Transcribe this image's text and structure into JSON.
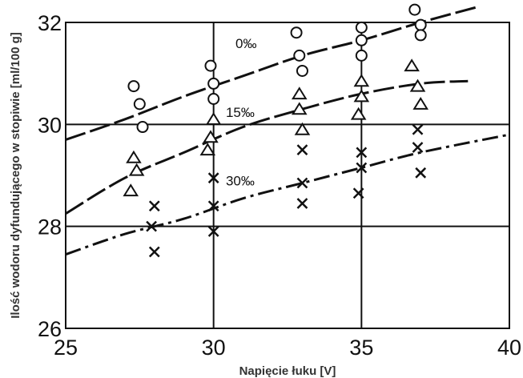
{
  "chart_data": {
    "type": "scatter",
    "title": "",
    "xlabel": "Napięcie łuku [V]",
    "ylabel": "Ilość wodoru dyfundującego w stopiwie [ml/100 g]",
    "xlim": [
      25,
      40
    ],
    "ylim": [
      26,
      32
    ],
    "xticks": [
      "25",
      "30",
      "35",
      "40"
    ],
    "yticks": [
      "26",
      "28",
      "30",
      "32"
    ],
    "grid": true,
    "series": [
      {
        "name": "0‰",
        "marker": "circle",
        "line_style": "dashed",
        "points": [
          [
            27.3,
            30.75
          ],
          [
            27.5,
            30.4
          ],
          [
            27.6,
            29.95
          ],
          [
            29.9,
            31.15
          ],
          [
            30.0,
            30.8
          ],
          [
            30.0,
            30.5
          ],
          [
            32.8,
            31.8
          ],
          [
            32.9,
            31.35
          ],
          [
            33.0,
            31.05
          ],
          [
            35.0,
            31.9
          ],
          [
            35.0,
            31.65
          ],
          [
            35.0,
            31.35
          ],
          [
            36.8,
            32.25
          ],
          [
            37.0,
            31.95
          ],
          [
            37.0,
            31.75
          ]
        ],
        "trend": [
          [
            25,
            29.7
          ],
          [
            27,
            30.1
          ],
          [
            29,
            30.55
          ],
          [
            31,
            30.95
          ],
          [
            33,
            31.35
          ],
          [
            35,
            31.65
          ],
          [
            37,
            32.0
          ],
          [
            38.9,
            32.3
          ]
        ]
      },
      {
        "name": "15‰",
        "marker": "triangle",
        "line_style": "dashed",
        "points": [
          [
            27.3,
            29.35
          ],
          [
            27.4,
            29.1
          ],
          [
            27.2,
            28.7
          ],
          [
            30.0,
            30.1
          ],
          [
            29.9,
            29.75
          ],
          [
            29.8,
            29.5
          ],
          [
            32.9,
            30.6
          ],
          [
            32.9,
            30.3
          ],
          [
            33.0,
            29.9
          ],
          [
            35.0,
            30.85
          ],
          [
            35.0,
            30.55
          ],
          [
            34.9,
            30.2
          ],
          [
            36.7,
            31.15
          ],
          [
            36.9,
            30.75
          ],
          [
            37.0,
            30.4
          ]
        ],
        "trend": [
          [
            25,
            28.25
          ],
          [
            27,
            28.95
          ],
          [
            29,
            29.45
          ],
          [
            31,
            29.95
          ],
          [
            33,
            30.3
          ],
          [
            35,
            30.6
          ],
          [
            37,
            30.8
          ],
          [
            38.6,
            30.85
          ]
        ]
      },
      {
        "name": "30‰",
        "marker": "x",
        "line_style": "dash-dot",
        "points": [
          [
            28.0,
            28.4
          ],
          [
            27.9,
            28.0
          ],
          [
            28.0,
            27.5
          ],
          [
            30.0,
            28.95
          ],
          [
            30.0,
            28.4
          ],
          [
            30.0,
            27.9
          ],
          [
            33.0,
            29.5
          ],
          [
            33.0,
            28.85
          ],
          [
            33.0,
            28.45
          ],
          [
            35.0,
            29.45
          ],
          [
            35.0,
            29.15
          ],
          [
            34.9,
            28.65
          ],
          [
            36.9,
            29.9
          ],
          [
            36.9,
            29.55
          ],
          [
            37.0,
            29.05
          ]
        ],
        "trend": [
          [
            25,
            27.45
          ],
          [
            27,
            27.85
          ],
          [
            29,
            28.15
          ],
          [
            31,
            28.55
          ],
          [
            33,
            28.85
          ],
          [
            35,
            29.15
          ],
          [
            37,
            29.45
          ],
          [
            40,
            29.8
          ]
        ]
      }
    ],
    "annotations": [
      {
        "text": "0‰",
        "x": 31.1,
        "y": 31.5
      },
      {
        "text": "15‰",
        "x": 30.9,
        "y": 30.15
      },
      {
        "text": "30‰",
        "x": 30.9,
        "y": 28.8
      }
    ]
  }
}
